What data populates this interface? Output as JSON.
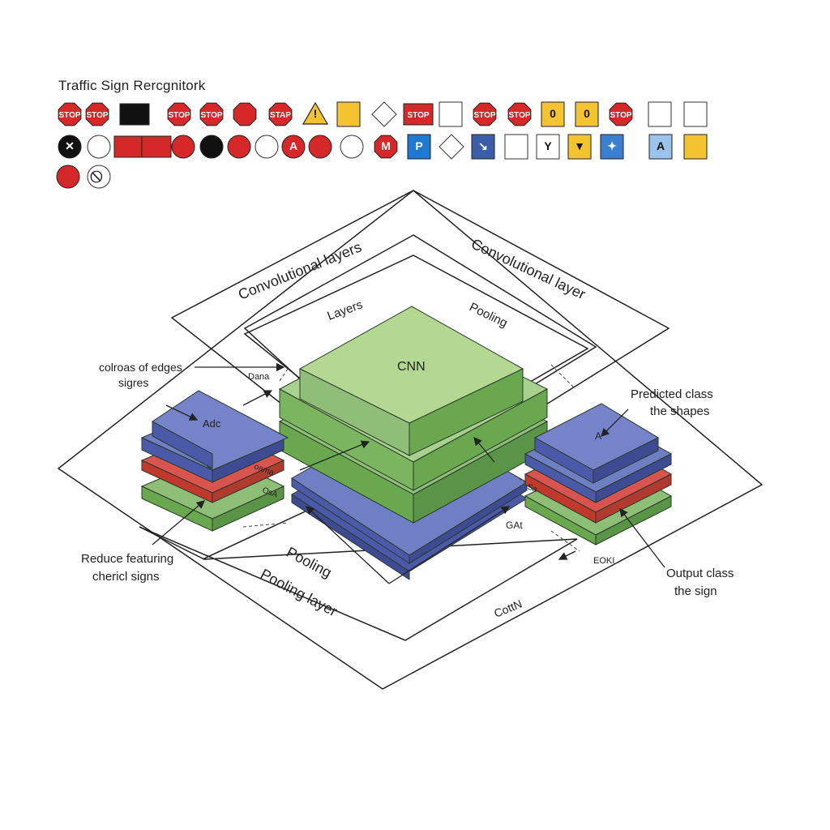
{
  "title": "Traffic Sign Rercgnitork",
  "signs": {
    "row1": [
      {
        "shape": "octagon",
        "fill": "#d62828",
        "text": "STOP"
      },
      {
        "shape": "octagon",
        "fill": "#d62828",
        "text": "STOP"
      },
      {
        "shape": "rect",
        "fill": "#111111",
        "text": ""
      },
      {
        "shape": "octagon",
        "fill": "#d62828",
        "text": "STOP"
      },
      {
        "shape": "octagon",
        "fill": "#d62828",
        "text": "STOP"
      },
      {
        "shape": "octagon",
        "fill": "#d62828",
        "text": ""
      },
      {
        "shape": "octagon",
        "fill": "#d62828",
        "text": "STAP"
      },
      {
        "shape": "triangle",
        "fill": "#f4c430",
        "text": "!"
      },
      {
        "shape": "square",
        "fill": "#f4c430",
        "text": ""
      },
      {
        "shape": "diamond",
        "fill": "#ffffff",
        "text": ""
      },
      {
        "shape": "rect",
        "fill": "#d62828",
        "text": "STOP"
      },
      {
        "shape": "square",
        "fill": "#ffffff",
        "text": ""
      },
      {
        "shape": "octagon",
        "fill": "#d62828",
        "text": "STOP"
      },
      {
        "shape": "octagon",
        "fill": "#d62828",
        "text": "STOP"
      },
      {
        "shape": "square",
        "fill": "#f4c430",
        "text": "0"
      },
      {
        "shape": "square",
        "fill": "#f4c430",
        "text": "0"
      },
      {
        "shape": "octagon",
        "fill": "#d62828",
        "text": "STOP"
      },
      {
        "shape": "square",
        "fill": "#ffffff",
        "text": ""
      },
      {
        "shape": "square",
        "fill": "#ffffff",
        "text": ""
      }
    ],
    "row2": [
      {
        "shape": "circle",
        "fill": "#111111",
        "text": "✕"
      },
      {
        "shape": "circle",
        "fill": "#ffffff",
        "text": ""
      },
      {
        "shape": "rect",
        "fill": "#d62828",
        "text": ""
      },
      {
        "shape": "rect",
        "fill": "#d62828",
        "text": ""
      },
      {
        "shape": "circle",
        "fill": "#d62828",
        "text": ""
      },
      {
        "shape": "circle",
        "fill": "#111111",
        "text": ""
      },
      {
        "shape": "circle",
        "fill": "#d62828",
        "text": ""
      },
      {
        "shape": "circle",
        "fill": "#ffffff",
        "text": ""
      },
      {
        "shape": "circle",
        "fill": "#d62828",
        "text": "A"
      },
      {
        "shape": "circle",
        "fill": "#d62828",
        "text": ""
      },
      {
        "shape": "circle",
        "fill": "#ffffff",
        "text": ""
      },
      {
        "shape": "octagon",
        "fill": "#d62828",
        "text": "M"
      },
      {
        "shape": "square",
        "fill": "#1f78d1",
        "text": "P"
      },
      {
        "shape": "diamond",
        "fill": "#ffffff",
        "text": ""
      },
      {
        "shape": "square",
        "fill": "#3a5fa8",
        "text": "↘"
      },
      {
        "shape": "square",
        "fill": "#ffffff",
        "text": ""
      },
      {
        "shape": "square",
        "fill": "#ffffff",
        "text": "Y"
      },
      {
        "shape": "square",
        "fill": "#f4c430",
        "text": "▼"
      },
      {
        "shape": "square",
        "fill": "#3a7fd0",
        "text": "✦"
      },
      {
        "shape": "square",
        "fill": "#9cc3ea",
        "text": "A"
      },
      {
        "shape": "square",
        "fill": "#f4c430",
        "text": ""
      },
      {
        "shape": "square",
        "fill": "#ffffff",
        "text": ""
      },
      {
        "shape": "square",
        "fill": "#ffffff",
        "text": "↑"
      }
    ],
    "row3": [
      {
        "shape": "circle",
        "fill": "#d62828",
        "text": ""
      },
      {
        "shape": "circle",
        "fill": "#ffffff",
        "text": "⃠"
      }
    ]
  },
  "labels": {
    "conv_layers_left": "Convolutional layers",
    "conv_layer_right": "Convolutional layer",
    "layers": "Layers",
    "pooling_top": "Pooling",
    "cnn": "CNN",
    "colors_edges_1": "colroas of edges",
    "colors_edges_2": "sigres",
    "left_block": "Adc",
    "right_block": "A",
    "predicted_1": "Predicted class",
    "predicted_2": "the shapes",
    "reduce_1": "Reduce featuring",
    "reduce_2": "chericl signs",
    "pooling_bottom": "Pooling",
    "pooling_layer": "Pooling layer",
    "output_1": "Output class",
    "output_2": "the sign",
    "conv_bottom": "CottN",
    "small_dana": "Dana",
    "small_gat": "GAt",
    "small_eokl": "EOKI",
    "small_oama": "oama",
    "small_osa": "OsA",
    "small_sa": "Sa"
  },
  "colors": {
    "green_top": "#a9d18e",
    "green_side": "#6aa84f",
    "blue_top": "#6f7fc4",
    "blue_side": "#4a5aa8",
    "red_side": "#d9534f",
    "line": "#222222"
  }
}
